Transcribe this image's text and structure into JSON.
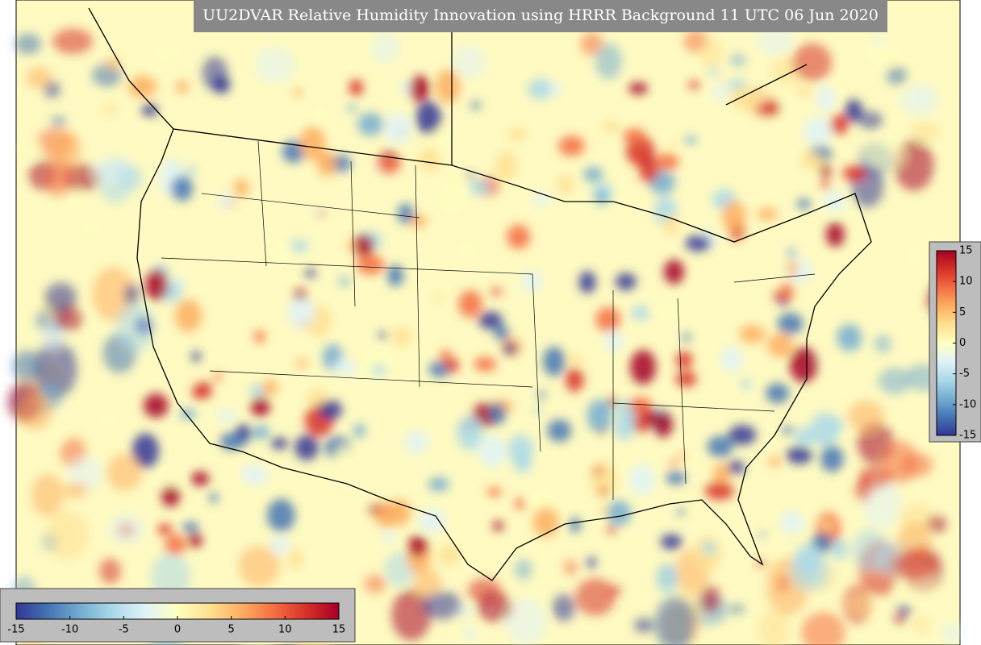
{
  "title": "UU2DVAR Relative Humidity Innovation using HRRR Background 11 UTC 06 Jun 2020",
  "colormap": [
    "#313695",
    "#4575b4",
    "#74add1",
    "#abd9e9",
    "#e0f3f8",
    "#ffffbf",
    "#fee090",
    "#fdae61",
    "#f46d43",
    "#d73027",
    "#a50026"
  ],
  "vertical_colorbar": {
    "range": [
      -15,
      15
    ],
    "ticks": [
      15,
      10,
      5,
      0,
      -5,
      -10,
      -15
    ]
  },
  "horizontal_colorbar": {
    "range": [
      -15,
      15
    ],
    "ticks": [
      -15,
      -10,
      -5,
      0,
      5,
      10,
      15
    ]
  }
}
